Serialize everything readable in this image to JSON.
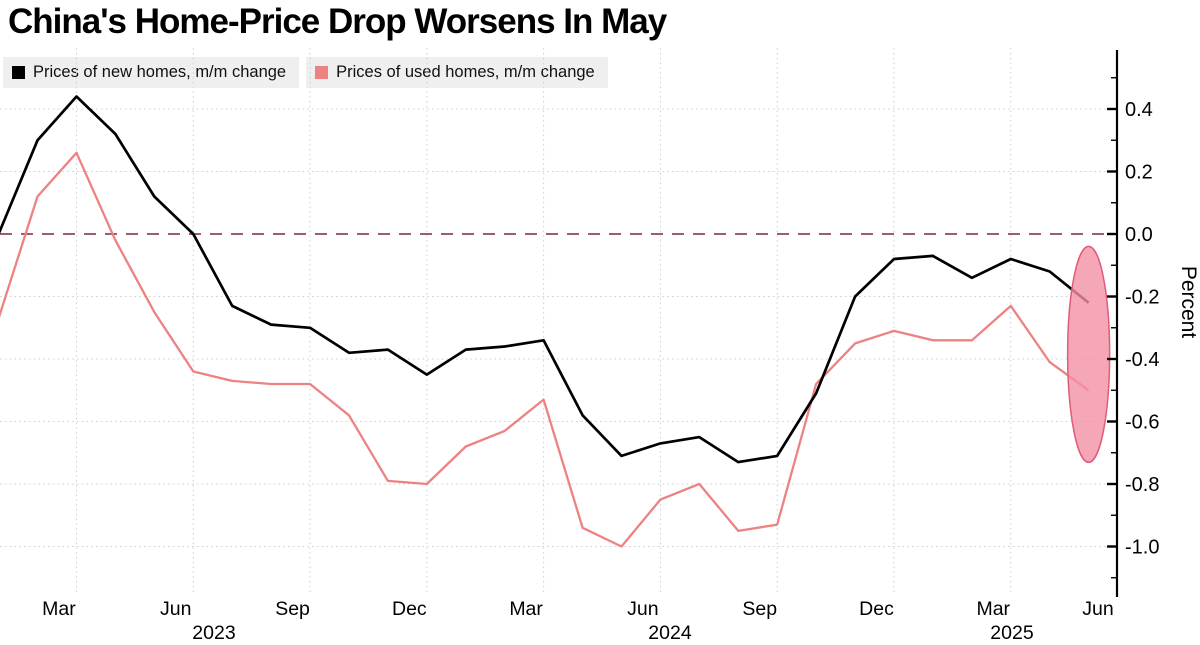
{
  "title": "China's Home-Price Drop Worsens In May",
  "legend": {
    "items": [
      {
        "id": "new-homes",
        "label": "Prices of new homes, m/m change",
        "color": "#000000"
      },
      {
        "id": "used-homes",
        "label": "Prices of used homes, m/m change",
        "color": "#ec8282"
      }
    ]
  },
  "y_axis": {
    "title": "Percent",
    "major_tick_labels": [
      "0.4",
      "0.2",
      "0.0",
      "-0.2",
      "-0.4",
      "-0.6",
      "-0.8",
      "-1.0"
    ]
  },
  "x_axis": {
    "tick_labels": [
      {
        "label": "Mar",
        "month": 2
      },
      {
        "label": "Jun",
        "month": 5
      },
      {
        "label": "Sep",
        "month": 8
      },
      {
        "label": "Dec",
        "month": 11
      },
      {
        "label": "Mar",
        "month": 14
      },
      {
        "label": "Jun",
        "month": 17
      },
      {
        "label": "Sep",
        "month": 20
      },
      {
        "label": "Dec",
        "month": 23
      },
      {
        "label": "Mar",
        "month": 26
      },
      {
        "label": "Jun",
        "month": 29
      }
    ],
    "year_labels": [
      {
        "label": "2023"
      },
      {
        "label": "2024"
      },
      {
        "label": "2025"
      }
    ]
  },
  "chart_data": {
    "type": "line",
    "title": "China's Home-Price Drop Worsens In May",
    "ylabel": "Percent",
    "ylim": [
      -1.15,
      0.52
    ],
    "grid": {
      "h_values": [
        0.4,
        0.2,
        -0.2,
        -0.4,
        -0.6,
        -0.8,
        -1.0
      ],
      "v_months": [
        2,
        5,
        8,
        11,
        14,
        17,
        20,
        23,
        26
      ]
    },
    "zero_line": {
      "value": 0.0,
      "style": "dashed",
      "color": "#9b5f66"
    },
    "months": [
      "2023-01",
      "2023-02",
      "2023-03",
      "2023-04",
      "2023-05",
      "2023-06",
      "2023-07",
      "2023-08",
      "2023-09",
      "2023-10",
      "2023-11",
      "2023-12",
      "2024-01",
      "2024-02",
      "2024-03",
      "2024-04",
      "2024-05",
      "2024-06",
      "2024-07",
      "2024-08",
      "2024-09",
      "2024-10",
      "2024-11",
      "2024-12",
      "2025-01",
      "2025-02",
      "2025-03",
      "2025-04",
      "2025-05"
    ],
    "series": [
      {
        "name": "Prices of new homes, m/m change",
        "color": "#000000",
        "values": [
          0.0,
          0.3,
          0.44,
          0.32,
          0.12,
          0.0,
          -0.23,
          -0.29,
          -0.3,
          -0.38,
          -0.37,
          -0.45,
          -0.37,
          -0.36,
          -0.34,
          -0.58,
          -0.71,
          -0.67,
          -0.65,
          -0.73,
          -0.71,
          -0.51,
          -0.2,
          -0.08,
          -0.07,
          -0.14,
          -0.08,
          -0.12,
          -0.22
        ]
      },
      {
        "name": "Prices of used homes, m/m change",
        "color": "#ec8282",
        "values": [
          -0.27,
          0.12,
          0.26,
          -0.02,
          -0.25,
          -0.44,
          -0.47,
          -0.48,
          -0.48,
          -0.58,
          -0.79,
          -0.8,
          -0.68,
          -0.63,
          -0.53,
          -0.94,
          -1.0,
          -0.85,
          -0.8,
          -0.95,
          -0.93,
          -0.48,
          -0.35,
          -0.31,
          -0.34,
          -0.34,
          -0.23,
          -0.41,
          -0.5
        ]
      }
    ],
    "annotation": {
      "type": "ellipse-highlight",
      "target": "May 2025 used-home price drop",
      "center_month": 28,
      "center_value": -0.385,
      "fill": "rgba(244,145,165,0.8)",
      "stroke": "#e05c78"
    }
  }
}
